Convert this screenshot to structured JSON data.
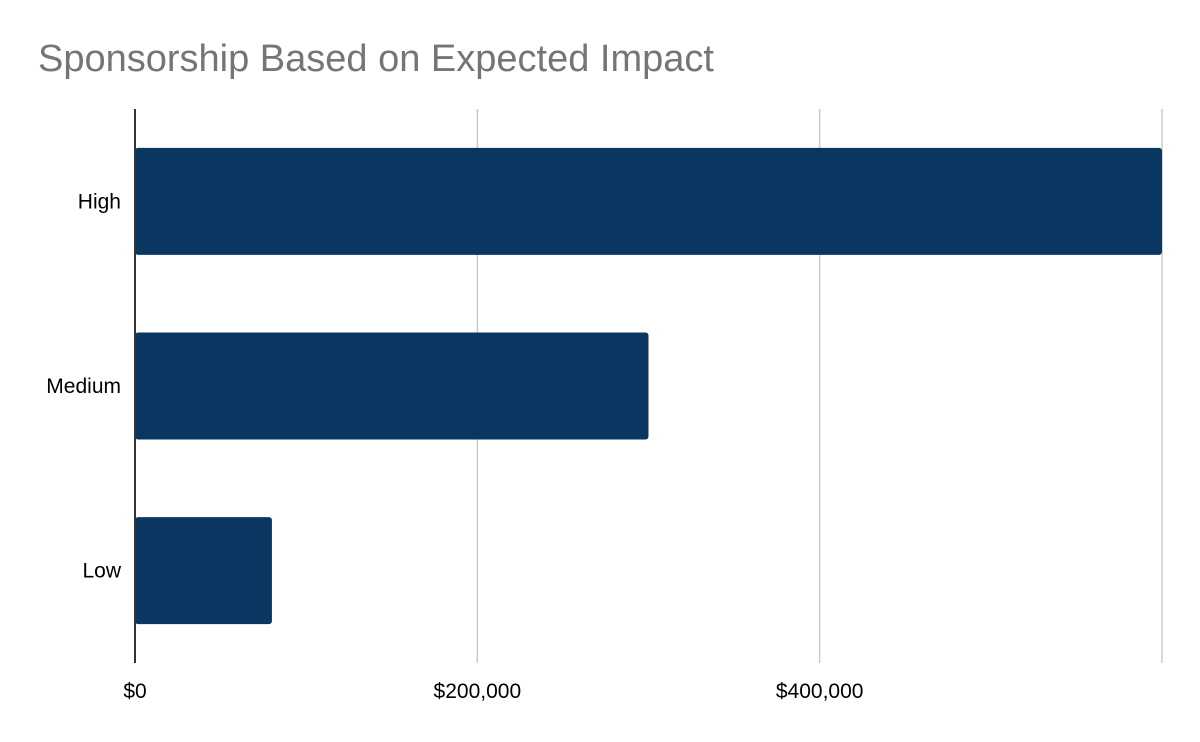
{
  "chart_data": {
    "type": "bar",
    "orientation": "horizontal",
    "title": "Sponsorship Based on Expected Impact",
    "xlabel": "",
    "ylabel": "",
    "categories": [
      "High",
      "Medium",
      "Low"
    ],
    "values": [
      600000,
      300000,
      80000
    ],
    "xlim": [
      0,
      600000
    ],
    "x_ticks": [
      0,
      200000,
      400000
    ],
    "x_tick_labels": [
      "$0",
      "$200,000",
      "$400,000"
    ],
    "grid": "vertical",
    "legend": "none",
    "bar_color": "#0a3761"
  },
  "colors": {
    "bar": "#0a3761",
    "title": "#757575",
    "grid": "#cccccc",
    "axis": "#333333"
  }
}
